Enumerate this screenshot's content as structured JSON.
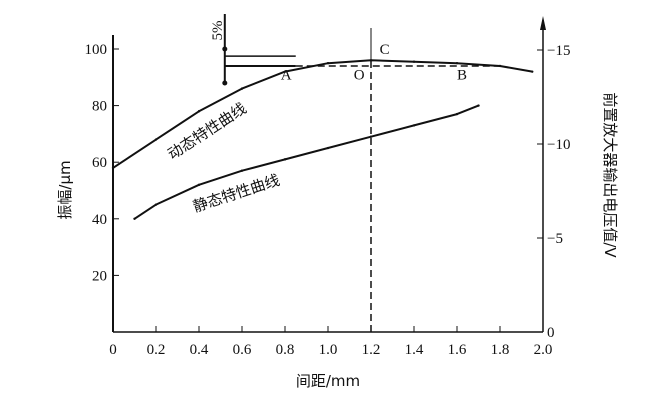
{
  "chart_data": {
    "type": "line",
    "xlabel": "间距/mm",
    "ylabel": "振幅/μm",
    "y2label": "前置放大器输出电压值/V",
    "xlim": [
      0,
      2.0
    ],
    "ylim": [
      0,
      105
    ],
    "y2lim": [
      0,
      -15
    ],
    "xticks": [
      "0",
      "0.2",
      "0.4",
      "0.6",
      "0.8",
      "1.0",
      "1.2",
      "1.4",
      "1.6",
      "1.8",
      "2.0"
    ],
    "yticks": [
      "20",
      "40",
      "60",
      "80",
      "100"
    ],
    "y2ticks": [
      "0",
      "-5",
      "-10",
      "-15"
    ],
    "series": [
      {
        "name": "动态特性曲线",
        "x": [
          0,
          0.2,
          0.4,
          0.6,
          0.8,
          1.0,
          1.2,
          1.4,
          1.6,
          1.8,
          1.95
        ],
        "y": [
          58,
          68,
          78,
          86,
          92,
          95,
          96,
          95.5,
          95,
          94,
          92
        ]
      },
      {
        "name": "静态特性曲线",
        "x": [
          0.1,
          0.2,
          0.4,
          0.6,
          0.8,
          1.0,
          1.2,
          1.4,
          1.6,
          1.7
        ],
        "y": [
          40,
          45,
          52,
          57,
          61,
          65,
          69,
          73,
          77,
          80
        ]
      }
    ],
    "annotations": [
      {
        "text": "A",
        "x": 0.78,
        "y": 91
      },
      {
        "text": "O",
        "x": 1.12,
        "y": 91
      },
      {
        "text": "B",
        "x": 1.6,
        "y": 91
      },
      {
        "text": "C",
        "x": 1.24,
        "y": 100
      },
      {
        "text": "5%",
        "x": 0.52,
        "y": 103
      }
    ],
    "reference_x": 1.2,
    "reference_y": 94,
    "grid": false
  }
}
